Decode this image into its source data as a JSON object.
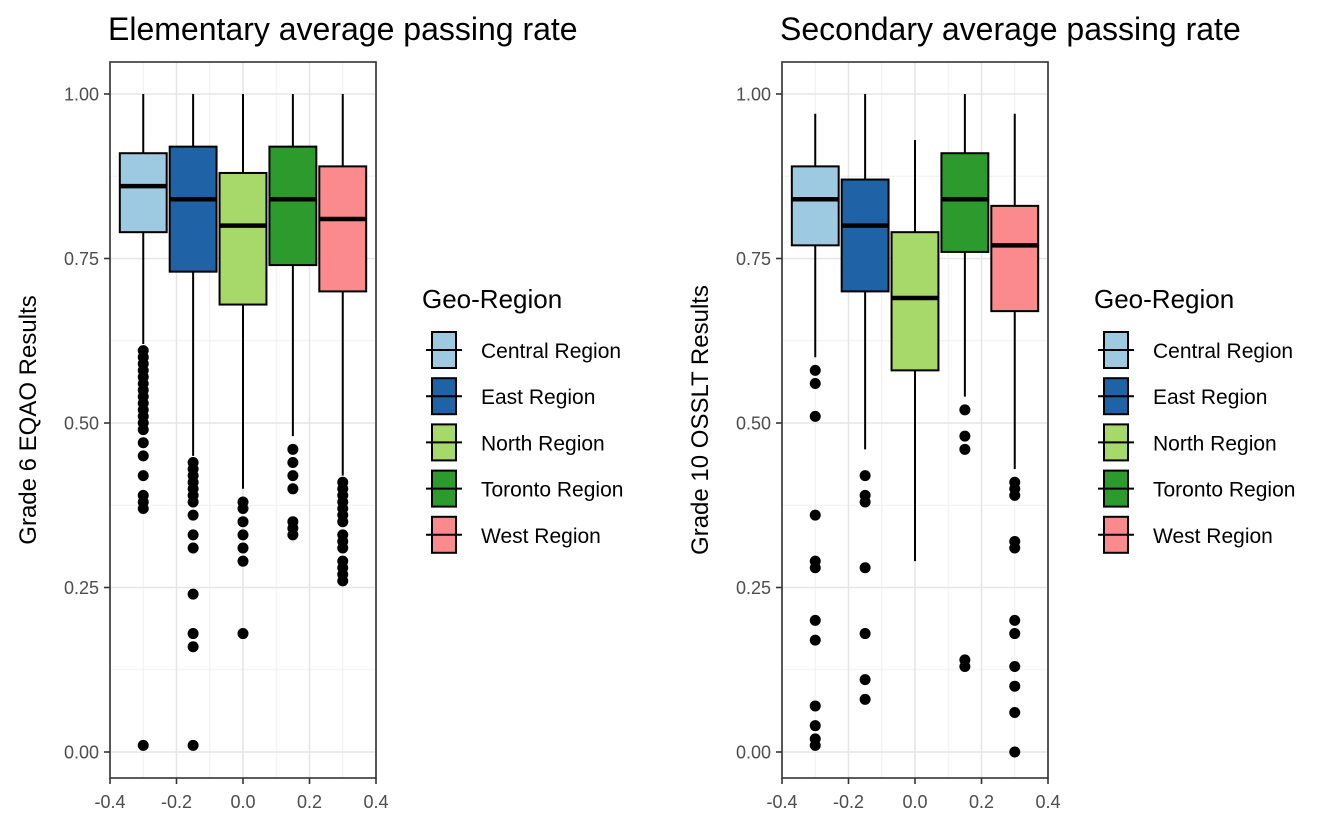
{
  "chart_data": [
    {
      "type": "boxplot",
      "title": "Elementary average passing rate",
      "xlabel": "",
      "ylabel": "Grade 6 EQAO Results",
      "xlim": [
        -0.4,
        0.4
      ],
      "ylim": [
        0.0,
        1.0
      ],
      "x_ticks": [
        "-0.4",
        "-0.2",
        "0.0",
        "0.2",
        "0.4"
      ],
      "y_ticks": [
        "0.00",
        "0.25",
        "0.50",
        "0.75",
        "1.00"
      ],
      "grid": true,
      "legend": {
        "title": "Geo-Region",
        "position": "right"
      },
      "series": [
        {
          "name": "Central Region",
          "x": -0.3,
          "color": "#9ecae1",
          "whisker_low": 0.62,
          "q1": 0.79,
          "median": 0.86,
          "q3": 0.91,
          "whisker_high": 1.0,
          "outliers": [
            0.61,
            0.6,
            0.59,
            0.58,
            0.57,
            0.56,
            0.55,
            0.54,
            0.53,
            0.52,
            0.51,
            0.5,
            0.49,
            0.47,
            0.45,
            0.42,
            0.39,
            0.38,
            0.37,
            0.01
          ]
        },
        {
          "name": "East Region",
          "x": -0.15,
          "color": "#1f62a6",
          "whisker_low": 0.45,
          "q1": 0.73,
          "median": 0.84,
          "q3": 0.92,
          "whisker_high": 1.0,
          "outliers": [
            0.44,
            0.43,
            0.42,
            0.41,
            0.4,
            0.39,
            0.38,
            0.36,
            0.33,
            0.31,
            0.24,
            0.18,
            0.16,
            0.01
          ]
        },
        {
          "name": "North Region",
          "x": 0.0,
          "color": "#a6d96a",
          "whisker_low": 0.4,
          "q1": 0.68,
          "median": 0.8,
          "q3": 0.88,
          "whisker_high": 1.0,
          "outliers": [
            0.38,
            0.37,
            0.35,
            0.33,
            0.31,
            0.29,
            0.18
          ]
        },
        {
          "name": "Toronto Region",
          "x": 0.15,
          "color": "#2d9a2d",
          "whisker_low": 0.48,
          "q1": 0.74,
          "median": 0.84,
          "q3": 0.92,
          "whisker_high": 1.0,
          "outliers": [
            0.46,
            0.44,
            0.42,
            0.4,
            0.35,
            0.34,
            0.33
          ]
        },
        {
          "name": "West Region",
          "x": 0.3,
          "color": "#fa8a8c",
          "whisker_low": 0.42,
          "q1": 0.7,
          "median": 0.81,
          "q3": 0.89,
          "whisker_high": 1.0,
          "outliers": [
            0.41,
            0.4,
            0.39,
            0.38,
            0.37,
            0.36,
            0.35,
            0.33,
            0.32,
            0.31,
            0.29,
            0.28,
            0.27,
            0.26
          ]
        }
      ]
    },
    {
      "type": "boxplot",
      "title": "Secondary average passing rate",
      "xlabel": "",
      "ylabel": "Grade 10 OSSLT Results",
      "xlim": [
        -0.4,
        0.4
      ],
      "ylim": [
        0.0,
        1.0
      ],
      "x_ticks": [
        "-0.4",
        "-0.2",
        "0.0",
        "0.2",
        "0.4"
      ],
      "y_ticks": [
        "0.00",
        "0.25",
        "0.50",
        "0.75",
        "1.00"
      ],
      "grid": true,
      "legend": {
        "title": "Geo-Region",
        "position": "right"
      },
      "series": [
        {
          "name": "Central Region",
          "x": -0.3,
          "color": "#9ecae1",
          "whisker_low": 0.6,
          "q1": 0.77,
          "median": 0.84,
          "q3": 0.89,
          "whisker_high": 0.97,
          "outliers": [
            0.58,
            0.56,
            0.51,
            0.36,
            0.29,
            0.28,
            0.2,
            0.17,
            0.07,
            0.04,
            0.02,
            0.01
          ]
        },
        {
          "name": "East Region",
          "x": -0.15,
          "color": "#1f62a6",
          "whisker_low": 0.46,
          "q1": 0.7,
          "median": 0.8,
          "q3": 0.87,
          "whisker_high": 1.0,
          "outliers": [
            0.42,
            0.39,
            0.38,
            0.28,
            0.18,
            0.11,
            0.08
          ]
        },
        {
          "name": "North Region",
          "x": 0.0,
          "color": "#a6d96a",
          "whisker_low": 0.29,
          "q1": 0.58,
          "median": 0.69,
          "q3": 0.79,
          "whisker_high": 0.93,
          "outliers": []
        },
        {
          "name": "Toronto Region",
          "x": 0.15,
          "color": "#2d9a2d",
          "whisker_low": 0.54,
          "q1": 0.76,
          "median": 0.84,
          "q3": 0.91,
          "whisker_high": 1.0,
          "outliers": [
            0.52,
            0.48,
            0.46,
            0.14,
            0.13
          ]
        },
        {
          "name": "West Region",
          "x": 0.3,
          "color": "#fa8a8c",
          "whisker_low": 0.43,
          "q1": 0.67,
          "median": 0.77,
          "q3": 0.83,
          "whisker_high": 0.97,
          "outliers": [
            0.41,
            0.4,
            0.39,
            0.32,
            0.31,
            0.2,
            0.18,
            0.13,
            0.1,
            0.06,
            0.0
          ]
        }
      ]
    }
  ]
}
